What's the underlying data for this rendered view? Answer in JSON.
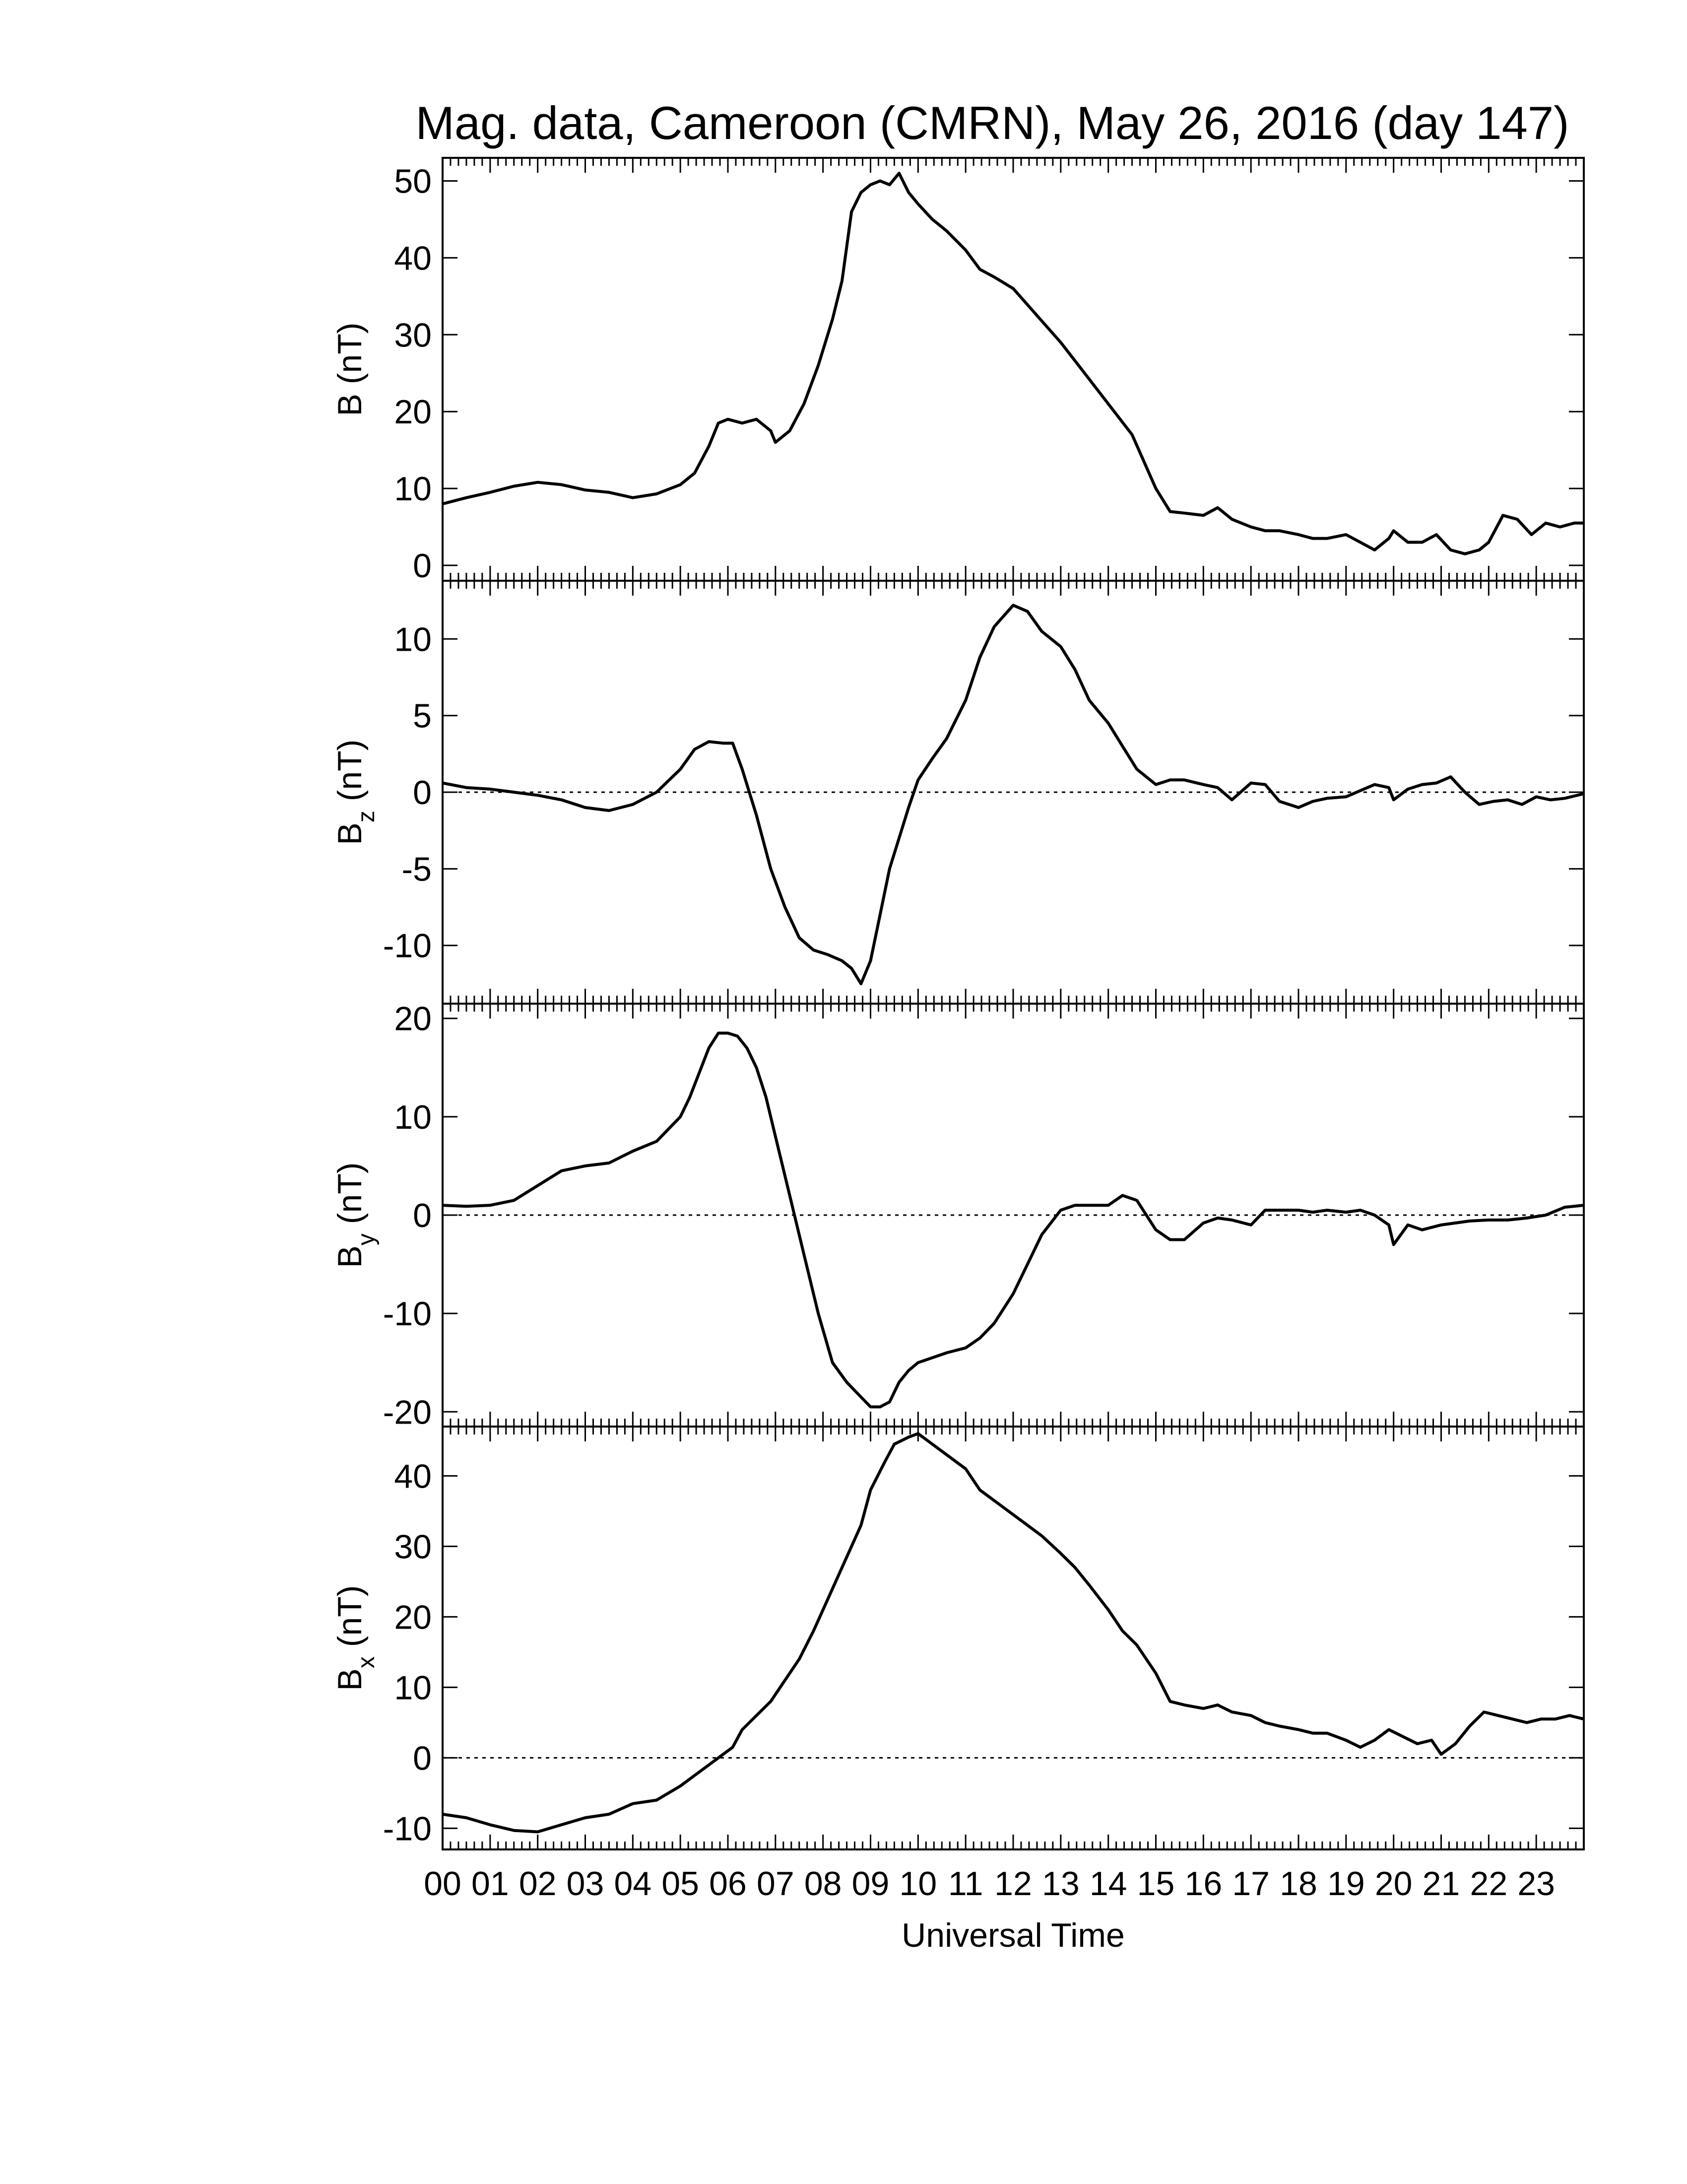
{
  "title": "Mag. data, Cameroon (CMRN), May 26, 2016 (day 147)",
  "xlabel": "Universal Time",
  "x_tick_labels": [
    "00",
    "01",
    "02",
    "03",
    "04",
    "05",
    "06",
    "07",
    "08",
    "09",
    "10",
    "11",
    "12",
    "13",
    "14",
    "15",
    "16",
    "17",
    "18",
    "19",
    "20",
    "21",
    "22",
    "23"
  ],
  "chart_data": [
    {
      "type": "line",
      "id": "B",
      "ylabel_main": "B",
      "ylabel_sub": "",
      "ylabel_unit": "(nT)",
      "xlim": [
        0,
        24
      ],
      "ylim": [
        -2,
        53
      ],
      "yticks": [
        0,
        10,
        20,
        30,
        40,
        50
      ],
      "zero_line": false,
      "series": [
        {
          "x": [
            0,
            0.5,
            1,
            1.5,
            2,
            2.5,
            3,
            3.5,
            4,
            4.5,
            5,
            5.3,
            5.6,
            5.8,
            6,
            6.3,
            6.6,
            6.9,
            7,
            7.3,
            7.6,
            7.9,
            8.2,
            8.4,
            8.6,
            8.8,
            9,
            9.2,
            9.4,
            9.6,
            9.8,
            10,
            10.3,
            10.6,
            11,
            11.3,
            11.6,
            12,
            12.5,
            13,
            13.5,
            14,
            14.5,
            15,
            15.3,
            15.6,
            16,
            16.3,
            16.6,
            17,
            17.3,
            17.6,
            18,
            18.3,
            18.6,
            19,
            19.3,
            19.6,
            19.9,
            20,
            20.3,
            20.6,
            20.9,
            21.2,
            21.5,
            21.8,
            22,
            22.3,
            22.6,
            22.9,
            23.2,
            23.5,
            23.8,
            24
          ],
          "values": [
            8,
            8.8,
            9.5,
            10.3,
            10.8,
            10.5,
            9.8,
            9.5,
            8.8,
            9.3,
            10.5,
            12,
            15.5,
            18.5,
            19,
            18.5,
            19,
            17.5,
            16,
            17.5,
            21,
            26,
            32,
            37,
            46,
            48.5,
            49.5,
            50,
            49.5,
            51,
            48.5,
            47,
            45,
            43.5,
            41,
            38.5,
            37.5,
            36,
            32.5,
            29,
            25,
            21,
            17,
            10,
            7,
            6.8,
            6.5,
            7.5,
            6,
            5,
            4.5,
            4.5,
            4,
            3.5,
            3.5,
            4,
            3,
            2,
            3.5,
            4.5,
            3,
            3,
            4,
            2,
            1.5,
            2,
            3,
            6.5,
            6,
            4,
            5.5,
            5,
            5.5,
            5.5
          ]
        }
      ]
    },
    {
      "type": "line",
      "id": "Bz",
      "ylabel_main": "B",
      "ylabel_sub": "z",
      "ylabel_unit": "(nT)",
      "xlim": [
        0,
        24
      ],
      "ylim": [
        -13.8,
        13.8
      ],
      "yticks": [
        -10,
        -5,
        0,
        5,
        10
      ],
      "zero_line": true,
      "series": [
        {
          "x": [
            0,
            0.5,
            1,
            1.5,
            2,
            2.5,
            3,
            3.5,
            4,
            4.5,
            5,
            5.3,
            5.6,
            5.9,
            6.1,
            6.3,
            6.6,
            6.9,
            7.2,
            7.5,
            7.8,
            8.1,
            8.4,
            8.6,
            8.8,
            9,
            9.2,
            9.4,
            9.6,
            9.8,
            10,
            10.3,
            10.6,
            11,
            11.3,
            11.6,
            12,
            12.3,
            12.6,
            13,
            13.3,
            13.6,
            14,
            14.3,
            14.6,
            15,
            15.3,
            15.6,
            16,
            16.3,
            16.6,
            17,
            17.3,
            17.6,
            18,
            18.3,
            18.6,
            19,
            19.3,
            19.6,
            19.9,
            20,
            20.3,
            20.6,
            20.9,
            21.2,
            21.5,
            21.8,
            22.1,
            22.4,
            22.7,
            23,
            23.3,
            23.6,
            24
          ],
          "values": [
            0.6,
            0.3,
            0.2,
            0,
            -0.2,
            -0.5,
            -1,
            -1.2,
            -0.8,
            0,
            1.5,
            2.8,
            3.3,
            3.2,
            3.2,
            1.5,
            -1.5,
            -5,
            -7.5,
            -9.5,
            -10.3,
            -10.6,
            -11,
            -11.5,
            -12.5,
            -11,
            -8,
            -5,
            -3,
            -1,
            0.8,
            2.2,
            3.5,
            6,
            8.8,
            10.8,
            12.2,
            11.8,
            10.5,
            9.5,
            8,
            6,
            4.5,
            3,
            1.5,
            0.5,
            0.8,
            0.8,
            0.5,
            0.3,
            -0.5,
            0.6,
            0.5,
            -0.6,
            -1,
            -0.6,
            -0.4,
            -0.3,
            0.1,
            0.5,
            0.3,
            -0.5,
            0.2,
            0.5,
            0.6,
            1,
            0,
            -0.8,
            -0.6,
            -0.5,
            -0.8,
            -0.3,
            -0.5,
            -0.4,
            -0.1
          ]
        }
      ]
    },
    {
      "type": "line",
      "id": "By",
      "ylabel_main": "B",
      "ylabel_sub": "y",
      "ylabel_unit": "(nT)",
      "xlim": [
        0,
        24
      ],
      "ylim": [
        -21.5,
        21.5
      ],
      "yticks": [
        -20,
        -10,
        0,
        10,
        20
      ],
      "zero_line": true,
      "series": [
        {
          "x": [
            0,
            0.5,
            1,
            1.5,
            2,
            2.5,
            3,
            3.5,
            4,
            4.5,
            5,
            5.2,
            5.4,
            5.6,
            5.8,
            6,
            6.2,
            6.4,
            6.6,
            6.8,
            7,
            7.3,
            7.6,
            7.9,
            8.2,
            8.5,
            8.8,
            9,
            9.2,
            9.4,
            9.6,
            9.8,
            10,
            10.3,
            10.6,
            11,
            11.3,
            11.6,
            12,
            12.3,
            12.6,
            13,
            13.3,
            13.6,
            14,
            14.3,
            14.6,
            15,
            15.3,
            15.6,
            16,
            16.3,
            16.6,
            17,
            17.3,
            17.6,
            18,
            18.3,
            18.6,
            19,
            19.3,
            19.6,
            19.9,
            20,
            20.3,
            20.6,
            21,
            21.3,
            21.6,
            22,
            22.4,
            22.8,
            23.2,
            23.6,
            24
          ],
          "values": [
            1,
            0.9,
            1,
            1.5,
            3,
            4.5,
            5,
            5.3,
            6.5,
            7.5,
            10,
            12,
            14.5,
            17,
            18.5,
            18.5,
            18.2,
            17,
            15,
            12,
            8,
            2,
            -4,
            -10,
            -15,
            -17,
            -18.5,
            -19.5,
            -19.5,
            -19,
            -17,
            -15.8,
            -15,
            -14.5,
            -14,
            -13.5,
            -12.5,
            -11,
            -8,
            -5,
            -2,
            0.5,
            1,
            1,
            1,
            2,
            1.5,
            -1.5,
            -2.5,
            -2.5,
            -0.8,
            -0.3,
            -0.5,
            -1,
            0.5,
            0.5,
            0.5,
            0.3,
            0.5,
            0.3,
            0.5,
            0,
            -1,
            -3,
            -1,
            -1.5,
            -1,
            -0.8,
            -0.6,
            -0.5,
            -0.5,
            -0.3,
            0,
            0.8,
            1
          ]
        }
      ]
    },
    {
      "type": "line",
      "id": "Bx",
      "ylabel_main": "B",
      "ylabel_sub": "x",
      "ylabel_unit": "(nT)",
      "xlim": [
        0,
        24
      ],
      "ylim": [
        -13,
        47
      ],
      "yticks": [
        -10,
        0,
        10,
        20,
        30,
        40
      ],
      "zero_line": true,
      "series": [
        {
          "x": [
            0,
            0.5,
            1,
            1.5,
            2,
            2.5,
            3,
            3.5,
            4,
            4.5,
            5,
            5.3,
            5.6,
            5.9,
            6.1,
            6.3,
            6.6,
            6.9,
            7.2,
            7.5,
            7.8,
            8.1,
            8.4,
            8.6,
            8.8,
            9,
            9.3,
            9.5,
            9.8,
            10,
            10.3,
            10.6,
            11,
            11.3,
            11.6,
            12,
            12.3,
            12.6,
            13,
            13.3,
            13.6,
            14,
            14.3,
            14.6,
            15,
            15.3,
            15.6,
            16,
            16.3,
            16.6,
            17,
            17.3,
            17.6,
            18,
            18.3,
            18.6,
            19,
            19.3,
            19.6,
            19.9,
            20.2,
            20.5,
            20.8,
            21,
            21.3,
            21.6,
            21.9,
            22.2,
            22.5,
            22.8,
            23.1,
            23.4,
            23.7,
            24
          ],
          "values": [
            -8,
            -8.5,
            -9.5,
            -10.3,
            -10.5,
            -9.5,
            -8.5,
            -8,
            -6.5,
            -6,
            -4,
            -2.5,
            -1,
            0.5,
            1.5,
            4,
            6,
            8,
            11,
            14,
            18,
            22.5,
            27,
            30,
            33,
            38,
            42,
            44.5,
            45.5,
            46,
            44.5,
            43,
            41,
            38,
            36.5,
            34.5,
            33,
            31.5,
            29,
            27,
            24.5,
            21,
            18,
            16,
            12,
            8,
            7.5,
            7,
            7.5,
            6.5,
            6,
            5,
            4.5,
            4,
            3.5,
            3.5,
            2.5,
            1.5,
            2.5,
            4,
            3,
            2,
            2.5,
            0.5,
            2,
            4.5,
            6.5,
            6,
            5.5,
            5,
            5.5,
            5.5,
            6,
            5.5
          ]
        }
      ]
    }
  ]
}
